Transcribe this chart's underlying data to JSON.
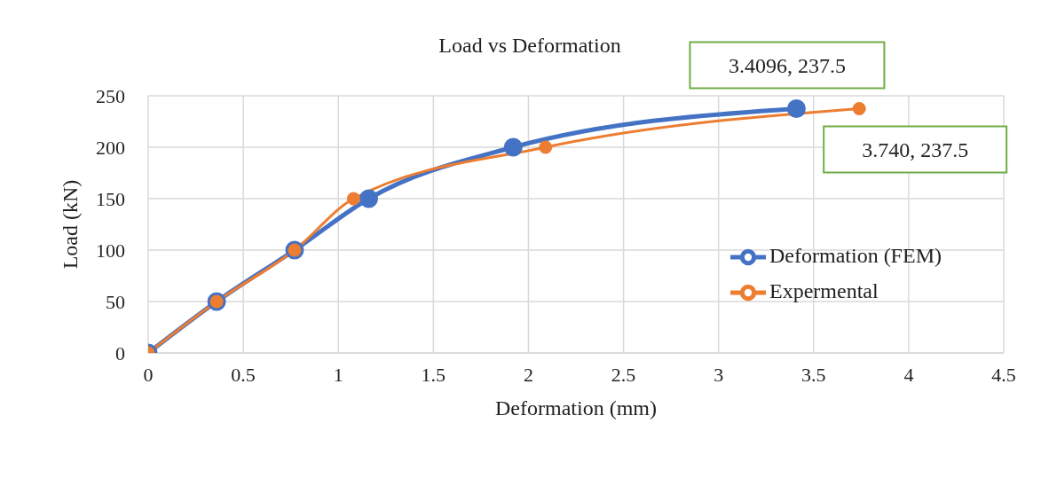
{
  "chart_data": {
    "type": "line",
    "title": "Load vs Deformation",
    "xlabel": "Deformation (mm)",
    "ylabel": "Load (kN)",
    "series": [
      {
        "name": "Deformation (FEM)",
        "color": "#4472c4",
        "x": [
          0,
          0.36,
          0.77,
          1.16,
          1.92,
          3.4096
        ],
        "values": [
          0,
          50,
          100,
          150,
          200,
          237.5
        ]
      },
      {
        "name": "Expermental",
        "color": "#ed7d31",
        "x": [
          0,
          0.36,
          0.77,
          1.08,
          2.09,
          3.74
        ],
        "values": [
          0,
          50,
          100,
          150,
          200,
          237.5
        ]
      }
    ],
    "xlim": [
      0,
      4.5
    ],
    "xticks": [
      0,
      0.5,
      1,
      1.5,
      2,
      2.5,
      3,
      3.5,
      4,
      4.5
    ],
    "ylim": [
      0,
      250
    ],
    "yticks": [
      0,
      50,
      100,
      150,
      200,
      250
    ],
    "annotations": [
      {
        "text": "3.4096, 237.5",
        "x": 3.4096,
        "y": 237.5
      },
      {
        "text": "3.740, 237.5",
        "x": 3.74,
        "y": 237.5
      }
    ],
    "grid": true,
    "legend": "right",
    "marker": "circle",
    "line_style": "solid"
  }
}
